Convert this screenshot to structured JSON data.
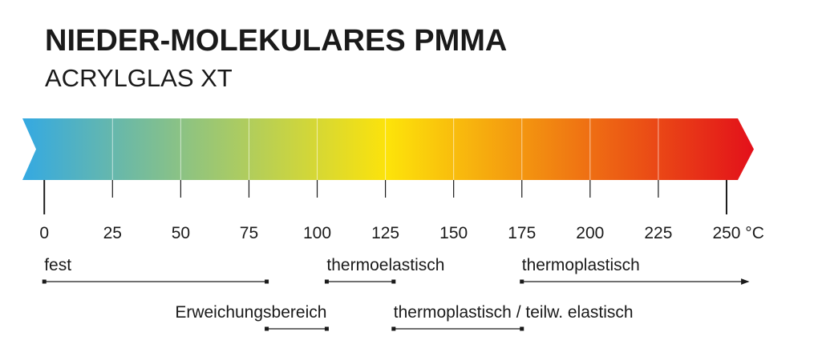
{
  "chart_data": {
    "type": "range",
    "title": "NIEDER-MOLEKULARES PMMA",
    "subtitle": "ACRYLGLAS XT",
    "xlim": [
      -8,
      260
    ],
    "xticks": [
      0,
      25,
      50,
      75,
      100,
      125,
      150,
      175,
      200,
      225,
      {
        "value": 250,
        "label": "250 °C"
      }
    ],
    "gradient": [
      "#34a9e2",
      "#fde30a",
      "#e3101a"
    ],
    "ranges": [
      {
        "name": "fest",
        "start": 0,
        "end": 81.5
      },
      {
        "name": "Erweichungsbereich",
        "start": 81.5,
        "end": 103.5
      },
      {
        "name": "thermoelastisch",
        "start": 103.5,
        "end": 128
      },
      {
        "name": "thermoplastisch / teilw. elastisch",
        "start": 128,
        "end": 175
      },
      {
        "name": "thermoplastisch",
        "start": 175,
        "end": 258,
        "arrow": true
      }
    ]
  }
}
